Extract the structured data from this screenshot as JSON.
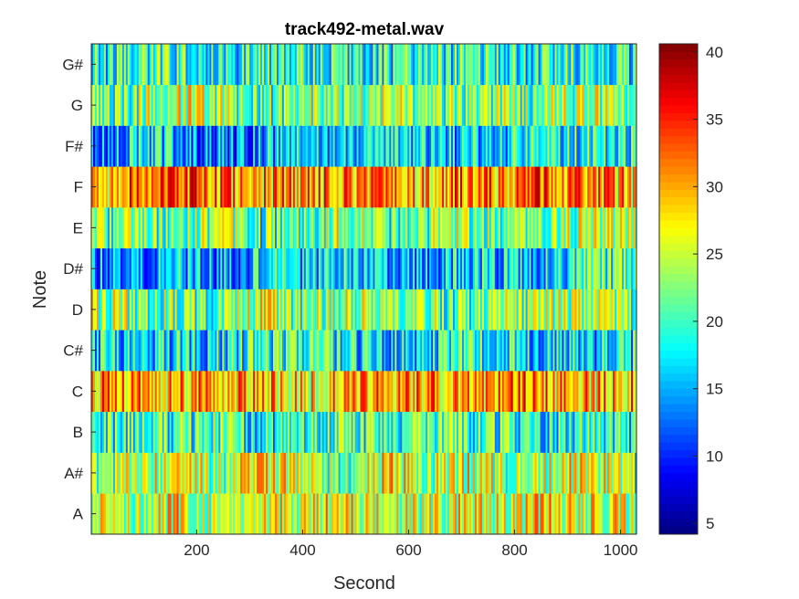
{
  "chart_data": {
    "type": "heatmap",
    "title": "track492-metal.wav",
    "xlabel": "Second",
    "ylabel": "Note",
    "xlim": [
      1,
      1030
    ],
    "xticks": [
      200,
      400,
      600,
      800,
      1000
    ],
    "rows": [
      "A",
      "A#",
      "B",
      "C",
      "C#",
      "D",
      "D#",
      "E",
      "F",
      "F#",
      "G",
      "G#"
    ],
    "colormap": "jet",
    "colorbar": {
      "min": 4.2,
      "max": 40.6,
      "ticks": [
        5,
        10,
        15,
        20,
        25,
        30,
        35,
        40
      ]
    },
    "row_profiles": {
      "A": [
        26,
        25,
        27,
        24,
        28,
        25,
        27,
        26,
        24,
        27,
        25,
        28,
        26,
        25
      ],
      "A#": [
        22,
        24,
        26,
        23,
        27,
        25,
        22,
        27,
        24,
        26,
        23,
        25,
        27,
        22
      ],
      "B": [
        18,
        20,
        19,
        21,
        18,
        20,
        22,
        19,
        21,
        20,
        19,
        18,
        20,
        19
      ],
      "C": [
        30,
        31,
        29,
        32,
        30,
        27,
        29,
        31,
        30,
        28,
        32,
        30,
        29,
        31
      ],
      "C#": [
        17,
        16,
        18,
        17,
        19,
        21,
        18,
        17,
        16,
        19,
        18,
        17,
        16,
        18
      ],
      "D": [
        24,
        23,
        22,
        21,
        25,
        22,
        24,
        23,
        22,
        21,
        22,
        24,
        23,
        22
      ],
      "D#": [
        14,
        15,
        16,
        14,
        17,
        16,
        18,
        16,
        15,
        17,
        16,
        15,
        20,
        18
      ],
      "E": [
        21,
        22,
        21,
        23,
        20,
        22,
        24,
        21,
        22,
        23,
        21,
        22,
        24,
        23
      ],
      "F": [
        27,
        33,
        34,
        32,
        30,
        31,
        32,
        30,
        29,
        32,
        31,
        33,
        32,
        28
      ],
      "F#": [
        14,
        16,
        17,
        13,
        15,
        18,
        16,
        17,
        18,
        16,
        17,
        18,
        19,
        17
      ],
      "G": [
        21,
        22,
        26,
        23,
        21,
        22,
        23,
        24,
        22,
        21,
        22,
        23,
        24,
        21
      ],
      "G#": [
        18,
        19,
        20,
        18,
        19,
        20,
        19,
        18,
        20,
        19,
        18,
        19,
        20,
        18
      ]
    }
  }
}
